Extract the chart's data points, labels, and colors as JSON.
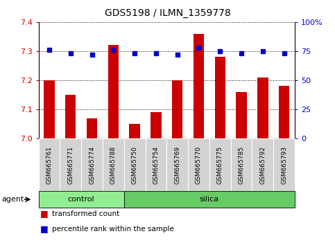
{
  "title": "GDS5198 / ILMN_1359778",
  "samples": [
    "GSM665761",
    "GSM665771",
    "GSM665774",
    "GSM665788",
    "GSM665750",
    "GSM665754",
    "GSM665769",
    "GSM665770",
    "GSM665775",
    "GSM665785",
    "GSM665792",
    "GSM665793"
  ],
  "bar_values": [
    7.2,
    7.15,
    7.07,
    7.32,
    7.05,
    7.09,
    7.2,
    7.36,
    7.28,
    7.16,
    7.21,
    7.18
  ],
  "percentile_values": [
    76,
    73,
    72,
    76,
    73,
    73,
    72,
    78,
    75,
    73,
    75,
    73
  ],
  "bar_color": "#cc0000",
  "percentile_color": "#0000cc",
  "ylim_left": [
    7.0,
    7.4
  ],
  "ylim_right": [
    0,
    100
  ],
  "yticks_left": [
    7.0,
    7.1,
    7.2,
    7.3,
    7.4
  ],
  "yticks_right": [
    0,
    25,
    50,
    75,
    100
  ],
  "ytick_labels_right": [
    "0",
    "25",
    "50",
    "75",
    "100%"
  ],
  "control_n": 4,
  "silica_n": 8,
  "control_color": "#90ee90",
  "silica_color": "#66cc66",
  "agent_label": "agent",
  "control_label": "control",
  "silica_label": "silica",
  "legend_bar_label": "transformed count",
  "legend_pct_label": "percentile rank within the sample",
  "tick_label_color_left": "#cc0000",
  "tick_label_color_right": "#0000cc",
  "box_facecolor": "#d3d3d3",
  "title_fontsize": 10,
  "tick_fontsize": 8,
  "sample_fontsize": 6.5,
  "agent_fontsize": 8,
  "legend_fontsize": 7.5,
  "bar_width": 0.5
}
